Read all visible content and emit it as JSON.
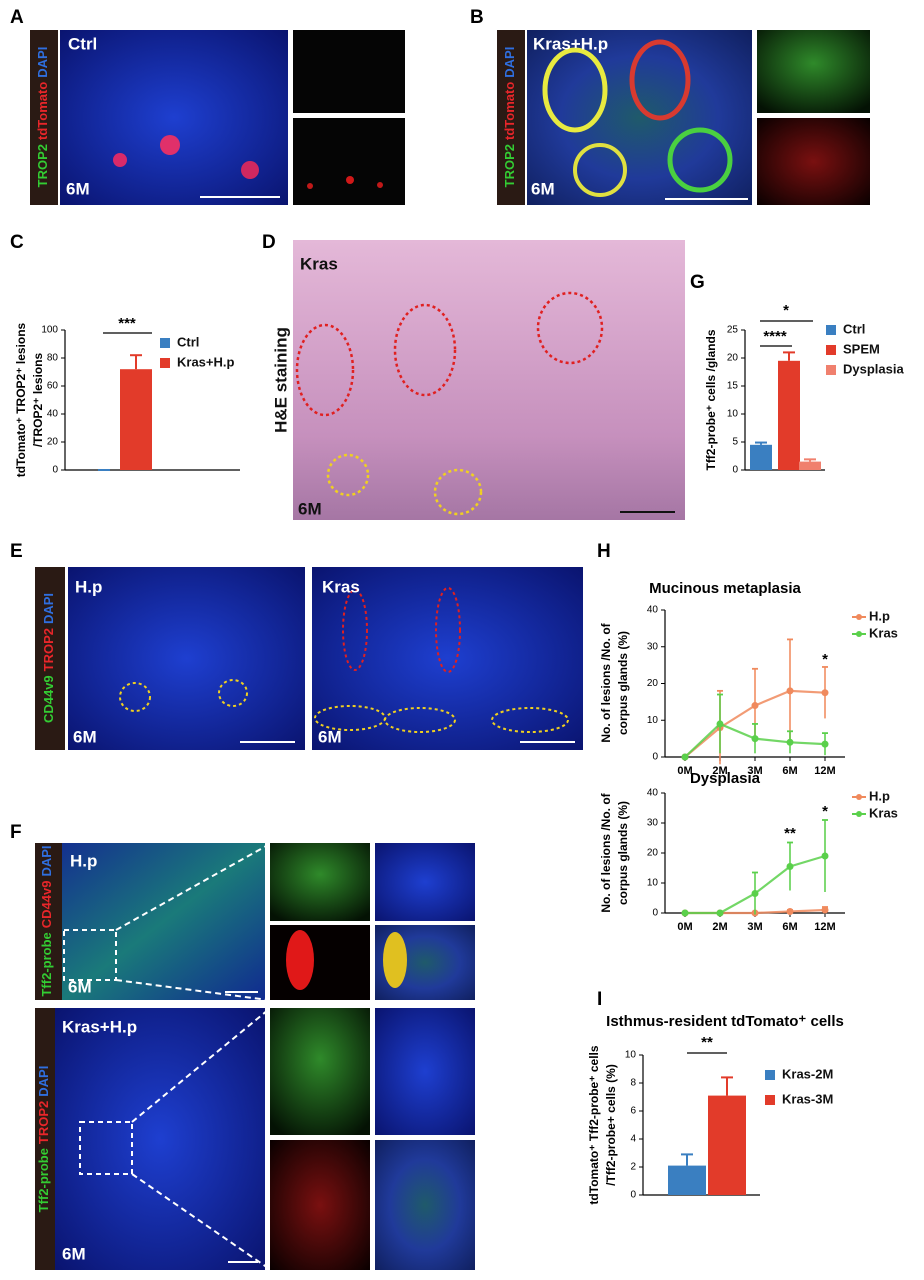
{
  "panel_letters": [
    "A",
    "B",
    "C",
    "D",
    "E",
    "F",
    "G",
    "H",
    "I"
  ],
  "stains": [
    [
      {
        "text": "TROP2",
        "color": "#33cc33"
      },
      {
        "text": "tdTomato",
        "color": "#e8262a"
      },
      {
        "text": "DAPI",
        "color": "#2f6fe0"
      }
    ],
    [
      {
        "text": "TROP2",
        "color": "#33cc33"
      },
      {
        "text": "tdTomato",
        "color": "#e8262a"
      },
      {
        "text": "DAPI",
        "color": "#2f6fe0"
      }
    ],
    [
      {
        "text": "CD44v9",
        "color": "#33cc33"
      },
      {
        "text": "TROP2",
        "color": "#e8262a"
      },
      {
        "text": "DAPI",
        "color": "#2f6fe0"
      }
    ],
    [
      {
        "text": "Tff2-probe",
        "color": "#33cc33"
      },
      {
        "text": "CD44v9",
        "color": "#e8262a"
      },
      {
        "text": "DAPI",
        "color": "#2f6fe0"
      }
    ],
    [
      {
        "text": "Tff2-probe",
        "color": "#33cc33"
      },
      {
        "text": "TROP2",
        "color": "#e8262a"
      },
      {
        "text": "DAPI",
        "color": "#2f6fe0"
      }
    ]
  ],
  "image_labels": [
    "Ctrl",
    "6M",
    "Kras+H.p",
    "6M",
    "Kras",
    "H&E staining",
    "6M",
    "H.p",
    "6M",
    "Kras",
    "6M",
    "H.p",
    "6M",
    "Kras+H.p",
    "6M"
  ],
  "chart_data": [
    {
      "type": "bar",
      "ylabel": [
        "tdTomato⁺ TROP2⁺ lesions",
        "/TROP2⁺ lesions"
      ],
      "ylim": [
        0,
        100
      ],
      "yticks": [
        0,
        20,
        40,
        60,
        80,
        100
      ],
      "annotations": [
        "***"
      ],
      "series": [
        {
          "name": "Ctrl",
          "color": "#3a7fc1",
          "values": [
            0
          ],
          "errors": [
            0
          ]
        },
        {
          "name": "Kras+H.p",
          "color": "#e23b2a",
          "values": [
            72
          ],
          "errors": [
            10
          ]
        }
      ]
    },
    {
      "type": "bar",
      "ylabel": [
        "Tff2-probe⁺ cells /glands"
      ],
      "ylim": [
        0,
        25
      ],
      "yticks": [
        0,
        5,
        10,
        15,
        20,
        25
      ],
      "annotations": [
        "****",
        "*"
      ],
      "series": [
        {
          "name": "Ctrl",
          "color": "#3a7fc1",
          "values": [
            4.5
          ],
          "errors": [
            0.4
          ]
        },
        {
          "name": "SPEM",
          "color": "#e23b2a",
          "values": [
            19.5
          ],
          "errors": [
            1.5
          ]
        },
        {
          "name": "Dysplasia",
          "color": "#f0806e",
          "values": [
            1.5
          ],
          "errors": [
            0.4
          ]
        }
      ]
    },
    {
      "type": "line",
      "title": "Mucinous metaplasia",
      "ylabel": [
        "No. of  lesions /No. of",
        "corpus glands (%)"
      ],
      "categories": [
        "0M",
        "2M",
        "3M",
        "6M",
        "12M"
      ],
      "ylim": [
        0,
        40
      ],
      "yticks": [
        0,
        10,
        20,
        30,
        40
      ],
      "annotations": [
        "*"
      ],
      "series": [
        {
          "name": "H.p",
          "color": "#f08a5d",
          "values": [
            0,
            8,
            14,
            18,
            17.5
          ],
          "errors": [
            0,
            10,
            10,
            14,
            7
          ]
        },
        {
          "name": "Kras",
          "color": "#5ad04b",
          "values": [
            0,
            9,
            5,
            4,
            3.5
          ],
          "errors": [
            0,
            8,
            4,
            3,
            3
          ]
        }
      ]
    },
    {
      "type": "line",
      "title": "Dysplasia",
      "ylabel": [
        "No. of  lesions /No. of",
        "corpus glands (%)"
      ],
      "categories": [
        "0M",
        "2M",
        "3M",
        "6M",
        "12M"
      ],
      "ylim": [
        0,
        40
      ],
      "yticks": [
        0,
        10,
        20,
        30,
        40
      ],
      "annotations": [
        "**",
        "*"
      ],
      "series": [
        {
          "name": "H.p",
          "color": "#f08a5d",
          "values": [
            0,
            0,
            0,
            0.5,
            1
          ],
          "errors": [
            0,
            0,
            0,
            0.5,
            1
          ]
        },
        {
          "name": "Kras",
          "color": "#5ad04b",
          "values": [
            0,
            0,
            6.5,
            15.5,
            19
          ],
          "errors": [
            0,
            0,
            7,
            8,
            12
          ]
        }
      ]
    },
    {
      "type": "bar",
      "title": "Isthmus-resident tdTomato⁺ cells",
      "ylabel": [
        "tdTomato⁺ Tff2-probe⁺ cells",
        "/Tff2-probe+ cells (%)"
      ],
      "ylim": [
        0,
        10
      ],
      "yticks": [
        0,
        2,
        4,
        6,
        8,
        10
      ],
      "annotations": [
        "**"
      ],
      "series": [
        {
          "name": "Kras-2M",
          "color": "#3a7fc1",
          "values": [
            2.1
          ],
          "errors": [
            0.8
          ]
        },
        {
          "name": "Kras-3M",
          "color": "#e23b2a",
          "values": [
            7.1
          ],
          "errors": [
            1.3
          ]
        }
      ]
    }
  ]
}
